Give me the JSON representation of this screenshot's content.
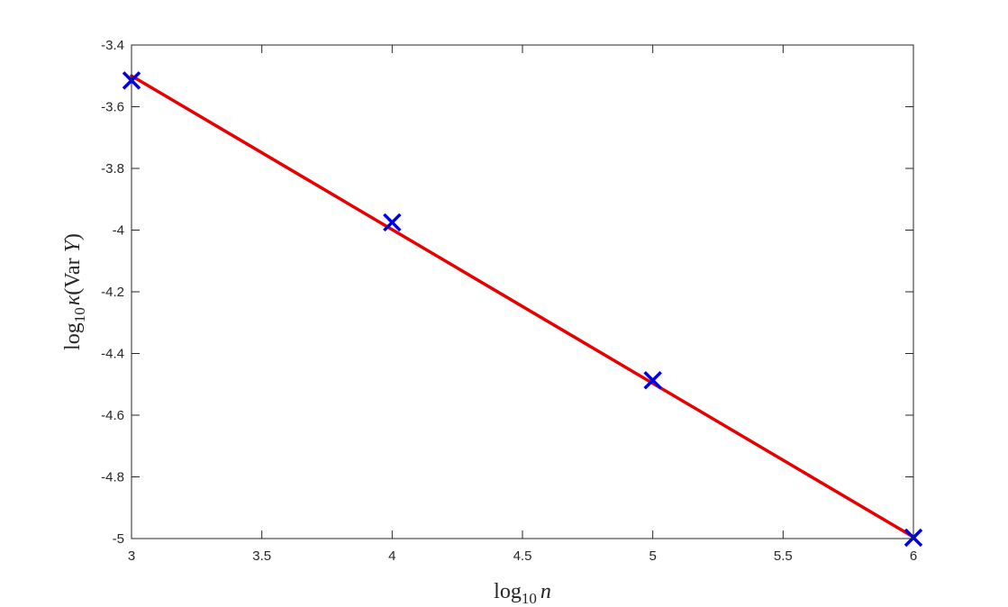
{
  "chart_data": {
    "type": "line",
    "xlabel": {
      "base": "log",
      "sub": "10",
      "var": "n"
    },
    "ylabel": {
      "base": "log",
      "sub": "10",
      "kappa": "κ",
      "open": "(Var ",
      "var": "Y",
      "close": ")"
    },
    "xlim": [
      3,
      6
    ],
    "ylim": [
      -5,
      -3.4
    ],
    "xticks": [
      3,
      3.5,
      4,
      4.5,
      5,
      5.5,
      6
    ],
    "yticks": [
      -3.4,
      -3.6,
      -3.8,
      -4,
      -4.2,
      -4.4,
      -4.6,
      -4.8,
      -5
    ],
    "xtick_labels": [
      "3",
      "3.5",
      "4",
      "4.5",
      "5",
      "5.5",
      "6"
    ],
    "ytick_labels": [
      "-3.4",
      "-3.6",
      "-3.8",
      "-4",
      "-4.2",
      "-4.4",
      "-4.6",
      "-4.8",
      "-5"
    ],
    "series": [
      {
        "kind": "markers",
        "marker": "x",
        "color": "#0000e6",
        "x": [
          3,
          4,
          5,
          6
        ],
        "y": [
          -3.515,
          -3.975,
          -4.487,
          -4.997
        ]
      },
      {
        "kind": "line",
        "color": "#e60000",
        "x": [
          3,
          6
        ],
        "y": [
          -3.5,
          -4.995
        ]
      }
    ],
    "grid": false,
    "legend": "none"
  }
}
